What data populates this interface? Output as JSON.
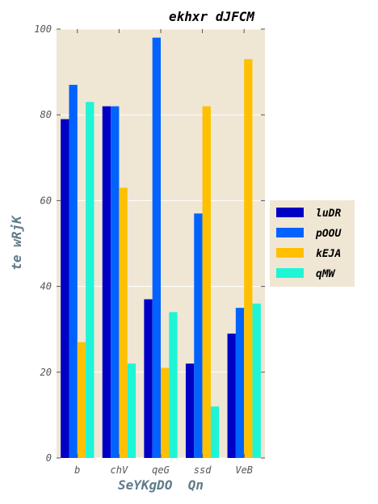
{
  "chart_data": {
    "type": "bar",
    "title": "ekhxr dJFCM",
    "xlabel": "SeYKgDO  Qn",
    "ylabel": "te wRjK",
    "categories": [
      "b",
      "chV",
      "qeG",
      "ssd",
      "VeB"
    ],
    "ylim": [
      0,
      100
    ],
    "yticks": [
      "0",
      "20",
      "40",
      "60",
      "80",
      "100"
    ],
    "grid": true,
    "legend_position": "right",
    "series": [
      {
        "name": "luDR",
        "color": "#0000c4",
        "values": [
          79,
          82,
          37,
          22,
          29
        ]
      },
      {
        "name": "pOOU",
        "color": "#0062ff",
        "values": [
          87,
          82,
          98,
          57,
          35
        ]
      },
      {
        "name": "kEJA",
        "color": "#ffc000",
        "values": [
          27,
          63,
          21,
          82,
          93
        ]
      },
      {
        "name": "qMW",
        "color": "#1ef5d6",
        "values": [
          83,
          22,
          34,
          12,
          36
        ]
      }
    ],
    "background": "#efe6d4"
  }
}
